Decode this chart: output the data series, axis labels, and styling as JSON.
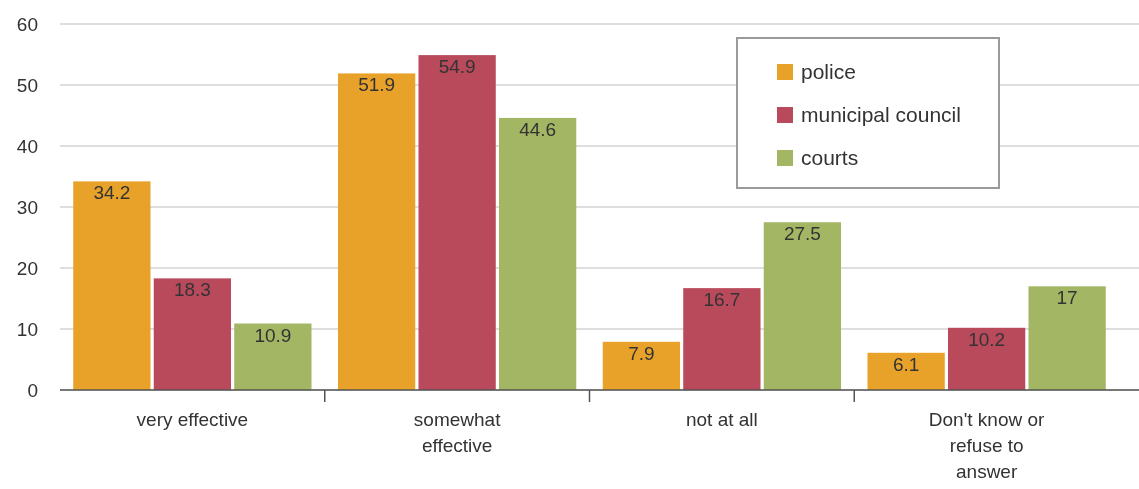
{
  "chart_data": {
    "type": "bar",
    "categories": [
      "very effective",
      "somewhat effective",
      "not at all",
      "Don't know or refuse to answer"
    ],
    "series": [
      {
        "name": "police",
        "color": "#e8a22a",
        "values": [
          34.2,
          51.9,
          7.9,
          6.1
        ]
      },
      {
        "name": "municipal council",
        "color": "#b84a5c",
        "values": [
          18.3,
          54.9,
          16.7,
          10.2
        ]
      },
      {
        "name": "courts",
        "color": "#a3b663",
        "values": [
          10.9,
          44.6,
          27.5,
          17
        ]
      }
    ],
    "ylim": [
      0,
      60
    ],
    "yticks": [
      0,
      10,
      20,
      30,
      40,
      50,
      60
    ],
    "grid": "y",
    "legend": "top right",
    "data_labels": true
  }
}
